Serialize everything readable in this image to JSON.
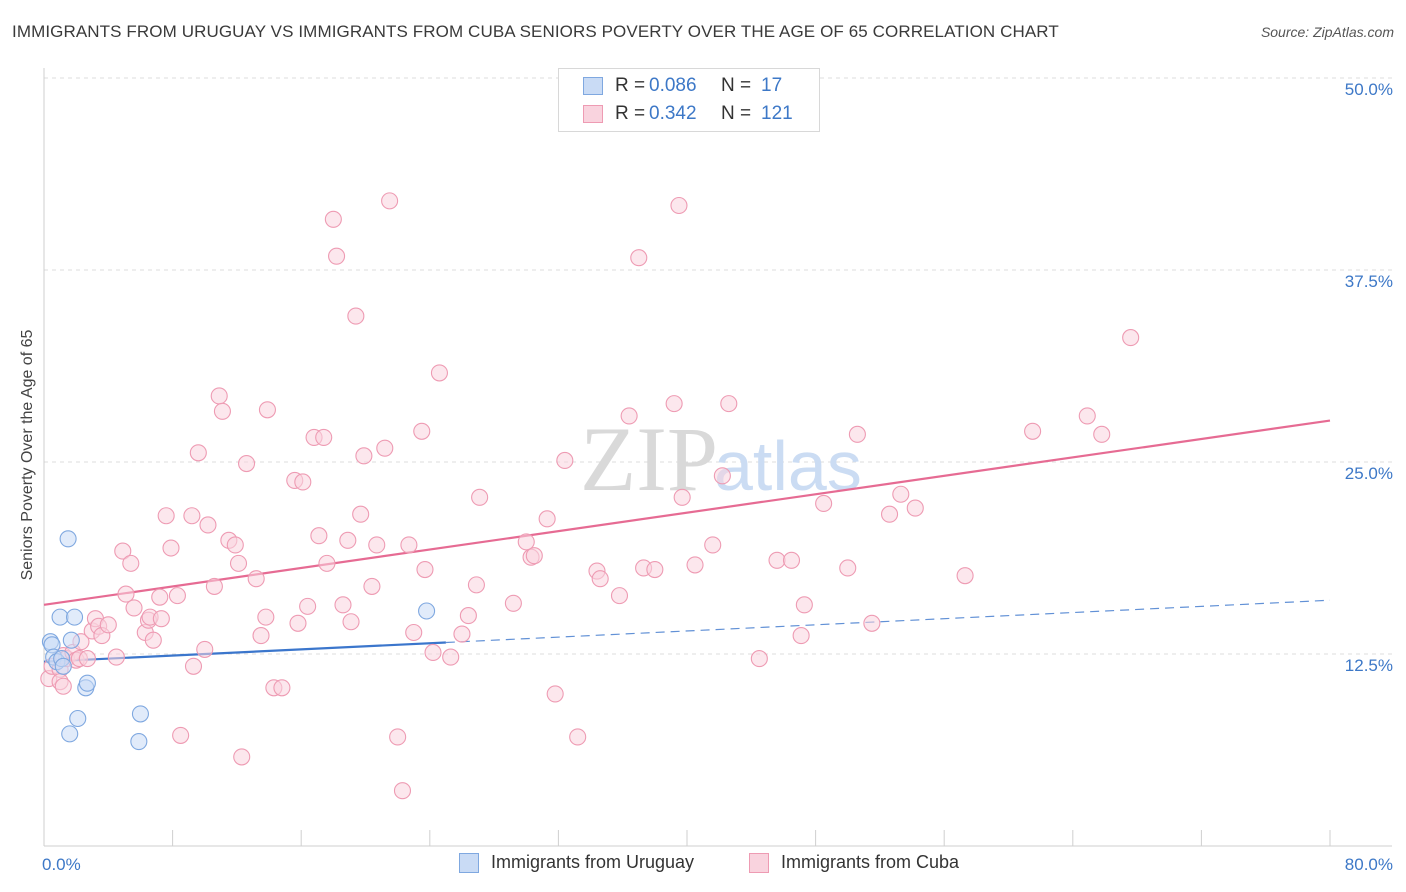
{
  "title": "IMMIGRANTS FROM URUGUAY VS IMMIGRANTS FROM CUBA SENIORS POVERTY OVER THE AGE OF 65 CORRELATION CHART",
  "source": "Source: ZipAtlas.com",
  "watermark": {
    "zip": "ZIP",
    "atlas": "atlas"
  },
  "legend": {
    "rows": [
      {
        "r_label": "R =",
        "r_value": "0.086",
        "n_label": "N =",
        "n_value": "17"
      },
      {
        "r_label": "R =",
        "r_value": "0.342",
        "n_label": "N =",
        "n_value": "121"
      }
    ]
  },
  "bottom_legend": [
    "Immigrants from Uruguay",
    "Immigrants from Cuba"
  ],
  "chart_data": {
    "type": "scatter",
    "title": "IMMIGRANTS FROM URUGUAY VS IMMIGRANTS FROM CUBA SENIORS POVERTY OVER THE AGE OF 65 CORRELATION CHART",
    "xlabel": "",
    "ylabel": "Seniors Poverty Over the Age of 65",
    "xlim": [
      0,
      80
    ],
    "ylim": [
      0,
      50
    ],
    "x_tick_labels": [
      "0.0%",
      "80.0%"
    ],
    "y_ticks": [
      12.5,
      25.0,
      37.5,
      50.0
    ],
    "y_tick_labels": [
      "12.5%",
      "25.0%",
      "37.5%",
      "50.0%"
    ],
    "grid": "horizontal dashed",
    "legend_placement": "top-center",
    "series": [
      {
        "name": "Immigrants from Uruguay",
        "color": "#7fa8e0",
        "fill": "#c9dbf5",
        "trend_color": "#3b76cc",
        "trend": {
          "x0": 0,
          "y0": 12.0,
          "x1": 80,
          "y1": 16.0,
          "solid_until": 25
        },
        "points": [
          [
            0.4,
            13.3
          ],
          [
            0.5,
            13.1
          ],
          [
            0.6,
            12.3
          ],
          [
            0.8,
            12.0
          ],
          [
            1.0,
            14.9
          ],
          [
            1.1,
            12.2
          ],
          [
            1.2,
            11.7
          ],
          [
            1.5,
            20.0
          ],
          [
            1.6,
            7.3
          ],
          [
            1.7,
            13.4
          ],
          [
            1.9,
            14.9
          ],
          [
            2.1,
            8.3
          ],
          [
            2.6,
            10.3
          ],
          [
            2.7,
            10.6
          ],
          [
            6.0,
            8.6
          ],
          [
            5.9,
            6.8
          ],
          [
            23.8,
            15.3
          ]
        ]
      },
      {
        "name": "Immigrants from Cuba",
        "color": "#ee9bb3",
        "fill": "#f9d3de",
        "trend_color": "#e66b93",
        "trend": {
          "x0": 0,
          "y0": 15.7,
          "x1": 80,
          "y1": 27.7
        },
        "points": [
          [
            0.3,
            10.9
          ],
          [
            0.5,
            11.7
          ],
          [
            1.0,
            11.5
          ],
          [
            1.0,
            10.7
          ],
          [
            1.2,
            12.4
          ],
          [
            1.2,
            10.4
          ],
          [
            1.4,
            12.2
          ],
          [
            1.8,
            12.6
          ],
          [
            2.0,
            12.1
          ],
          [
            2.2,
            12.2
          ],
          [
            2.3,
            13.3
          ],
          [
            2.7,
            12.2
          ],
          [
            3.0,
            14.0
          ],
          [
            3.2,
            14.8
          ],
          [
            3.4,
            14.3
          ],
          [
            3.6,
            13.7
          ],
          [
            4.0,
            14.4
          ],
          [
            4.5,
            12.3
          ],
          [
            4.9,
            19.2
          ],
          [
            5.1,
            16.4
          ],
          [
            5.4,
            18.4
          ],
          [
            5.6,
            15.5
          ],
          [
            6.3,
            13.9
          ],
          [
            6.5,
            14.7
          ],
          [
            6.6,
            14.9
          ],
          [
            6.8,
            13.4
          ],
          [
            7.2,
            16.2
          ],
          [
            7.3,
            14.8
          ],
          [
            7.6,
            21.5
          ],
          [
            7.9,
            19.4
          ],
          [
            8.3,
            16.3
          ],
          [
            8.5,
            7.2
          ],
          [
            9.2,
            21.5
          ],
          [
            9.3,
            11.7
          ],
          [
            9.6,
            25.6
          ],
          [
            10.0,
            12.8
          ],
          [
            10.2,
            20.9
          ],
          [
            10.6,
            16.9
          ],
          [
            10.9,
            29.3
          ],
          [
            11.1,
            28.3
          ],
          [
            11.5,
            19.9
          ],
          [
            11.9,
            19.6
          ],
          [
            12.1,
            18.4
          ],
          [
            12.3,
            5.8
          ],
          [
            12.6,
            24.9
          ],
          [
            13.2,
            17.4
          ],
          [
            13.5,
            13.7
          ],
          [
            13.8,
            14.9
          ],
          [
            13.9,
            28.4
          ],
          [
            14.3,
            10.3
          ],
          [
            14.8,
            10.3
          ],
          [
            15.6,
            23.8
          ],
          [
            15.8,
            14.5
          ],
          [
            16.1,
            23.7
          ],
          [
            16.4,
            15.6
          ],
          [
            16.8,
            26.6
          ],
          [
            17.1,
            20.2
          ],
          [
            17.4,
            26.6
          ],
          [
            17.6,
            18.4
          ],
          [
            18.0,
            40.8
          ],
          [
            18.2,
            38.4
          ],
          [
            18.6,
            15.7
          ],
          [
            18.9,
            19.9
          ],
          [
            19.1,
            14.6
          ],
          [
            19.4,
            34.5
          ],
          [
            19.7,
            21.6
          ],
          [
            19.9,
            25.4
          ],
          [
            20.4,
            16.9
          ],
          [
            20.7,
            19.6
          ],
          [
            21.2,
            25.9
          ],
          [
            21.5,
            42.0
          ],
          [
            22.0,
            7.1
          ],
          [
            22.3,
            3.6
          ],
          [
            22.7,
            19.6
          ],
          [
            23.0,
            13.9
          ],
          [
            23.5,
            27.0
          ],
          [
            23.7,
            18.0
          ],
          [
            24.2,
            12.6
          ],
          [
            24.6,
            30.8
          ],
          [
            25.3,
            12.3
          ],
          [
            26.0,
            13.8
          ],
          [
            26.4,
            15.0
          ],
          [
            26.9,
            17.0
          ],
          [
            27.1,
            22.7
          ],
          [
            29.2,
            15.8
          ],
          [
            30.0,
            19.8
          ],
          [
            30.3,
            18.8
          ],
          [
            30.5,
            18.9
          ],
          [
            31.3,
            21.3
          ],
          [
            31.8,
            9.9
          ],
          [
            32.4,
            25.1
          ],
          [
            33.2,
            7.1
          ],
          [
            34.4,
            17.9
          ],
          [
            34.6,
            17.4
          ],
          [
            35.8,
            16.3
          ],
          [
            36.4,
            28.0
          ],
          [
            37.0,
            38.3
          ],
          [
            37.3,
            18.1
          ],
          [
            38.0,
            18.0
          ],
          [
            39.2,
            28.8
          ],
          [
            39.5,
            41.7
          ],
          [
            39.7,
            22.7
          ],
          [
            40.5,
            18.3
          ],
          [
            41.6,
            19.6
          ],
          [
            42.2,
            24.1
          ],
          [
            42.6,
            28.8
          ],
          [
            44.5,
            12.2
          ],
          [
            45.6,
            18.6
          ],
          [
            46.5,
            18.6
          ],
          [
            47.1,
            13.7
          ],
          [
            47.3,
            15.7
          ],
          [
            48.5,
            22.3
          ],
          [
            50.0,
            18.1
          ],
          [
            50.6,
            26.8
          ],
          [
            51.5,
            14.5
          ],
          [
            52.6,
            21.6
          ],
          [
            53.3,
            22.9
          ],
          [
            54.2,
            22.0
          ],
          [
            57.3,
            17.6
          ],
          [
            61.5,
            27.0
          ],
          [
            64.9,
            28.0
          ],
          [
            65.8,
            26.8
          ],
          [
            67.6,
            33.1
          ]
        ]
      }
    ]
  }
}
